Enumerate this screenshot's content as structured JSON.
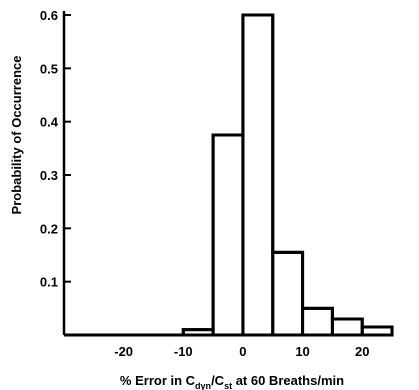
{
  "chart_data": {
    "type": "bar",
    "title": "",
    "xlabel": {
      "prefix": "% Error in C",
      "sub1": "dyn",
      "slash": "/C",
      "sub2": "st",
      "suffix": " at 60 Breaths/min"
    },
    "ylabel": "Probability of Occurrence",
    "xlim": [
      -30,
      26
    ],
    "ylim": [
      0,
      0.6
    ],
    "x_ticks": [
      -20,
      -10,
      0,
      10,
      20
    ],
    "x_tick_labels": [
      "-20",
      "-10",
      "0",
      "10",
      "20"
    ],
    "y_ticks": [
      0.1,
      0.2,
      0.3,
      0.4,
      0.5,
      0.6
    ],
    "y_tick_labels": [
      "0.1",
      "0.2",
      "0.3",
      "0.4",
      "0.5",
      "0.6"
    ],
    "bin_edges": [
      -30,
      -10,
      -5,
      0,
      5,
      10,
      15,
      20,
      25
    ],
    "values": [
      0,
      0.01,
      0.375,
      0.6,
      0.155,
      0.05,
      0.03,
      0.015
    ],
    "grid": false,
    "legend": "none",
    "line_color": "#000000"
  }
}
